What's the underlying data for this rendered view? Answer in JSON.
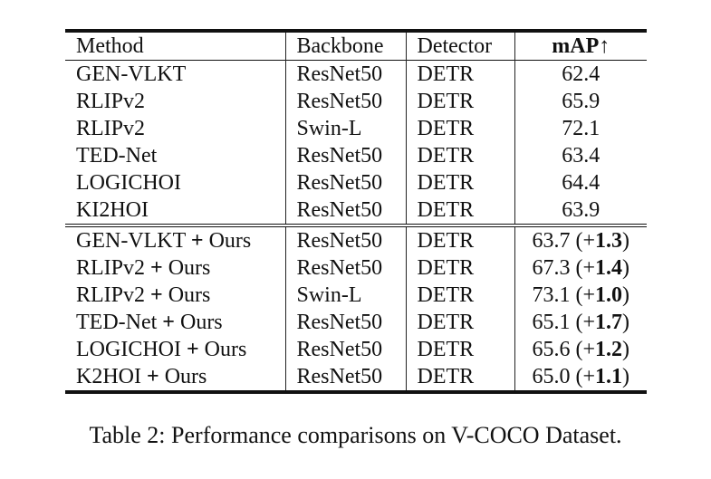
{
  "table": {
    "headers": {
      "method": "Method",
      "backbone": "Backbone",
      "detector": "Detector",
      "metric": "mAP↑"
    },
    "baseline_rows": [
      {
        "method": "GEN-VLKT",
        "backbone": "ResNet50",
        "detector": "DETR",
        "map": "62.4"
      },
      {
        "method": "RLIPv2",
        "backbone": "ResNet50",
        "detector": "DETR",
        "map": "65.9"
      },
      {
        "method": "RLIPv2",
        "backbone": "Swin-L",
        "detector": "DETR",
        "map": "72.1"
      },
      {
        "method": "TED-Net",
        "backbone": "ResNet50",
        "detector": "DETR",
        "map": "63.4"
      },
      {
        "method": "LOGICHOI",
        "backbone": "ResNet50",
        "detector": "DETR",
        "map": "64.4"
      },
      {
        "method": "KI2HOI",
        "backbone": "ResNet50",
        "detector": "DETR",
        "map": "63.9"
      }
    ],
    "ours_rows": [
      {
        "method": "GEN-VLKT",
        "plus": "+",
        "ours": "Ours",
        "backbone": "ResNet50",
        "detector": "DETR",
        "map": "63.7",
        "gain_prefix": "(+",
        "gain": "1.3",
        "gain_suffix": ")"
      },
      {
        "method": "RLIPv2",
        "plus": "+",
        "ours": "Ours",
        "backbone": "ResNet50",
        "detector": "DETR",
        "map": "67.3",
        "gain_prefix": "(+",
        "gain": "1.4",
        "gain_suffix": ")"
      },
      {
        "method": "RLIPv2",
        "plus": "+",
        "ours": "Ours",
        "backbone": "Swin-L",
        "detector": "DETR",
        "map": "73.1",
        "gain_prefix": "(+",
        "gain": "1.0",
        "gain_suffix": ")"
      },
      {
        "method": "TED-Net",
        "plus": "+",
        "ours": "Ours",
        "backbone": "ResNet50",
        "detector": "DETR",
        "map": "65.1",
        "gain_prefix": "(+",
        "gain": "1.7",
        "gain_suffix": ")"
      },
      {
        "method": "LOGICHOI",
        "plus": "+",
        "ours": "Ours",
        "backbone": "ResNet50",
        "detector": "DETR",
        "map": "65.6",
        "gain_prefix": "(+",
        "gain": "1.2",
        "gain_suffix": ")"
      },
      {
        "method": "K2HOI",
        "plus": "+",
        "ours": "Ours",
        "backbone": "ResNet50",
        "detector": "DETR",
        "map": "65.0",
        "gain_prefix": "(+",
        "gain": "1.1",
        "gain_suffix": ")"
      }
    ]
  },
  "caption": "Table 2: Performance comparisons on V-COCO Dataset."
}
